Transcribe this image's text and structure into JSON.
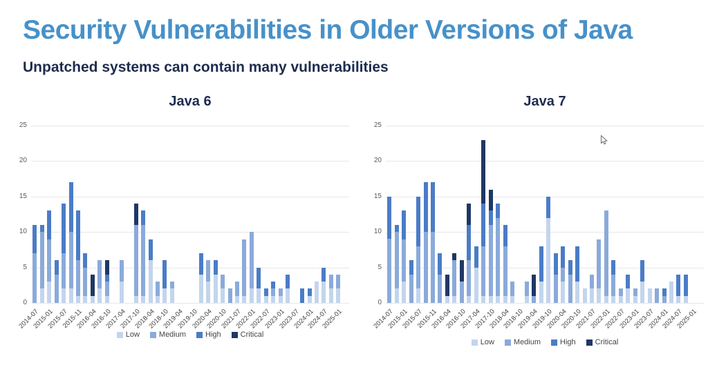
{
  "page": {
    "title": "Security Vulnerabilities in Older Versions of Java",
    "subtitle": "Unpatched systems can contain many vulnerabilities"
  },
  "colors": {
    "low": "#c3d5ed",
    "medium": "#8aaada",
    "high": "#4a7cc7",
    "critical": "#1f3864",
    "title_accent": "#4791c9",
    "subtitle_text": "#1d2c4e",
    "axis_text": "#5a5a5a",
    "gridline": "#e7e7e7"
  },
  "legend": {
    "items": [
      {
        "label": "Low",
        "color_key": "low"
      },
      {
        "label": "Medium",
        "color_key": "medium"
      },
      {
        "label": "High",
        "color_key": "high"
      },
      {
        "label": "Critical",
        "color_key": "critical"
      }
    ]
  },
  "cursor_icon": "mouse-pointer",
  "chart_data": [
    {
      "type": "bar",
      "stacked": true,
      "title": "Java 6",
      "ylim": [
        0,
        25
      ],
      "y_ticks": [
        0,
        5,
        10,
        15,
        20,
        25
      ],
      "grid": true,
      "legend_position": "bottom",
      "slots": 44,
      "x_labels_every": 2,
      "x_labels": [
        "2014-07",
        "2015-01",
        "2015-07",
        "2015-11",
        "2016-04",
        "2016-10",
        "2017-04",
        "2017-10",
        "2018-04",
        "2018-10",
        "2019-04",
        "2019-10",
        "2020-04",
        "2020-10",
        "2021-07",
        "2022-01",
        "2022-07",
        "2023-01",
        "2023-07",
        "2024-01",
        "2024-07",
        "2025-01"
      ],
      "series": [
        {
          "name": "Low",
          "color_key": "low",
          "values": [
            0,
            2,
            3,
            0,
            2,
            2,
            1,
            1,
            1,
            2,
            1,
            0,
            3,
            0,
            1,
            1,
            6,
            1,
            2,
            2,
            0,
            0,
            0,
            4,
            3,
            4,
            2,
            0,
            1,
            1,
            2,
            2,
            1,
            1,
            1,
            2,
            0,
            0,
            1,
            3,
            3,
            2,
            2,
            0
          ]
        },
        {
          "name": "Medium",
          "color_key": "medium",
          "values": [
            7,
            8,
            6,
            4,
            5,
            8,
            5,
            4,
            0,
            4,
            2,
            0,
            3,
            0,
            10,
            10,
            0,
            2,
            0,
            1,
            0,
            0,
            0,
            0,
            3,
            0,
            2,
            2,
            2,
            8,
            8,
            0,
            0,
            1,
            1,
            0,
            0,
            0,
            0,
            0,
            0,
            2,
            2,
            0
          ]
        },
        {
          "name": "High",
          "color_key": "high",
          "values": [
            4,
            1,
            4,
            2,
            7,
            7,
            7,
            2,
            0,
            0,
            1,
            0,
            0,
            0,
            0,
            2,
            3,
            0,
            4,
            0,
            0,
            0,
            0,
            3,
            0,
            2,
            0,
            0,
            0,
            0,
            0,
            3,
            1,
            1,
            0,
            2,
            0,
            2,
            1,
            0,
            2,
            0,
            0,
            0
          ]
        },
        {
          "name": "Critical",
          "color_key": "critical",
          "values": [
            0,
            0,
            0,
            0,
            0,
            0,
            0,
            0,
            3,
            0,
            2,
            0,
            0,
            0,
            3,
            0,
            0,
            0,
            0,
            0,
            0,
            0,
            0,
            0,
            0,
            0,
            0,
            0,
            0,
            0,
            0,
            0,
            0,
            0,
            0,
            0,
            0,
            0,
            0,
            0,
            0,
            0,
            0,
            0
          ]
        }
      ]
    },
    {
      "type": "bar",
      "stacked": true,
      "title": "Java 7",
      "ylim": [
        0,
        25
      ],
      "y_ticks": [
        0,
        5,
        10,
        15,
        20,
        25
      ],
      "grid": true,
      "legend_position": "bottom",
      "slots": 44,
      "x_labels_every": 2,
      "x_labels": [
        "2014-07",
        "2015-01",
        "2015-07",
        "2015-11",
        "2016-04",
        "2016-10",
        "2017-04",
        "2017-10",
        "2018-04",
        "2018-10",
        "2019-04",
        "2019-10",
        "2020-04",
        "2020-10",
        "2021-07",
        "2022-01",
        "2022-07",
        "2023-01",
        "2023-07",
        "2024-01",
        "2024-07",
        "2025-01"
      ],
      "series": [
        {
          "name": "Low",
          "color_key": "low",
          "values": [
            0,
            2,
            3,
            0,
            2,
            0,
            0,
            0,
            1,
            1,
            0,
            1,
            5,
            1,
            1,
            1,
            1,
            1,
            0,
            1,
            0,
            3,
            12,
            0,
            3,
            0,
            3,
            2,
            2,
            2,
            1,
            1,
            1,
            2,
            1,
            3,
            2,
            0,
            0,
            3,
            1,
            1,
            0,
            0
          ]
        },
        {
          "name": "Medium",
          "color_key": "medium",
          "values": [
            9,
            8,
            6,
            4,
            6,
            10,
            10,
            4,
            0,
            5,
            3,
            5,
            0,
            7,
            10,
            11,
            7,
            2,
            0,
            2,
            1,
            0,
            0,
            4,
            2,
            4,
            0,
            0,
            2,
            7,
            12,
            3,
            1,
            0,
            1,
            0,
            0,
            2,
            1,
            0,
            0,
            0,
            0,
            0
          ]
        },
        {
          "name": "High",
          "color_key": "high",
          "values": [
            6,
            1,
            4,
            2,
            7,
            7,
            7,
            3,
            0,
            0,
            0,
            5,
            3,
            6,
            2,
            2,
            3,
            0,
            0,
            0,
            0,
            5,
            3,
            3,
            3,
            2,
            5,
            0,
            0,
            0,
            0,
            2,
            0,
            2,
            0,
            3,
            0,
            0,
            1,
            0,
            3,
            3,
            0,
            0
          ]
        },
        {
          "name": "Critical",
          "color_key": "critical",
          "values": [
            0,
            0,
            0,
            0,
            0,
            0,
            0,
            0,
            3,
            1,
            3,
            3,
            0,
            9,
            3,
            0,
            0,
            0,
            0,
            0,
            3,
            0,
            0,
            0,
            0,
            0,
            0,
            0,
            0,
            0,
            0,
            0,
            0,
            0,
            0,
            0,
            0,
            0,
            0,
            0,
            0,
            0,
            0,
            0
          ]
        }
      ]
    }
  ]
}
